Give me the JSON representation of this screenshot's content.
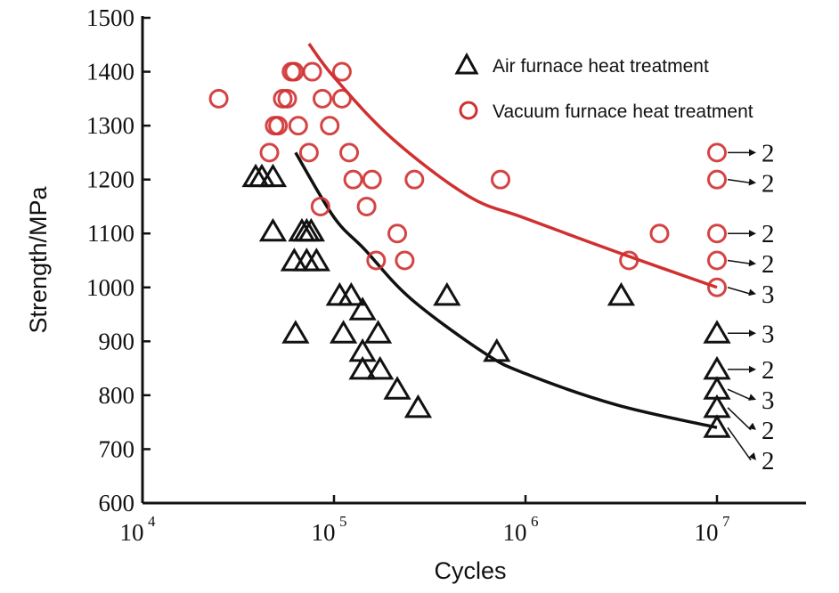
{
  "chart_data": {
    "type": "scatter",
    "xlabel": "Cycles",
    "ylabel": "Strength/MPa",
    "xscale": "log",
    "xlim": [
      10000,
      30000000
    ],
    "ylim": [
      600,
      1500
    ],
    "xticks": [
      10000,
      100000,
      1000000,
      10000000
    ],
    "xtick_labels": [
      {
        "base": "10",
        "exp": "4"
      },
      {
        "base": "10",
        "exp": "5"
      },
      {
        "base": "10",
        "exp": "6"
      },
      {
        "base": "10",
        "exp": "7"
      }
    ],
    "yticks": [
      600,
      700,
      800,
      900,
      1000,
      1100,
      1200,
      1300,
      1400,
      1500
    ],
    "grid": false,
    "legend_position": "top-right",
    "colors": {
      "air": "#111111",
      "vacuum": "#d03030"
    },
    "series": [
      {
        "name": "Air furnace heat treatment",
        "marker": "triangle",
        "points": [
          [
            39000,
            1205
          ],
          [
            42000,
            1205
          ],
          [
            48000,
            1205
          ],
          [
            48000,
            1104
          ],
          [
            68000,
            1104
          ],
          [
            72000,
            1104
          ],
          [
            76000,
            1104
          ],
          [
            62000,
            1049
          ],
          [
            72000,
            1049
          ],
          [
            81000,
            1049
          ],
          [
            107000,
            985
          ],
          [
            123000,
            985
          ],
          [
            63000,
            915
          ],
          [
            112000,
            915
          ],
          [
            170000,
            915
          ],
          [
            141000,
            958
          ],
          [
            141000,
            881
          ],
          [
            141000,
            848
          ],
          [
            174000,
            848
          ],
          [
            214000,
            811
          ],
          [
            275000,
            777
          ],
          [
            389000,
            985
          ],
          [
            708000,
            881
          ],
          [
            3160000,
            985
          ],
          [
            10000000,
            915
          ],
          [
            10000000,
            848
          ],
          [
            10000000,
            811
          ],
          [
            10000000,
            777
          ],
          [
            10000000,
            740
          ]
        ],
        "fit_curve": [
          [
            63000,
            1250
          ],
          [
            100000,
            1130
          ],
          [
            145000,
            1070
          ],
          [
            250000,
            980
          ],
          [
            600000,
            880
          ],
          [
            1000000,
            840
          ],
          [
            3000000,
            782
          ],
          [
            10000000,
            740
          ]
        ]
      },
      {
        "name": "Vacuum furnace heat treatment",
        "marker": "circle",
        "points": [
          [
            25000,
            1350
          ],
          [
            46000,
            1250
          ],
          [
            49000,
            1300
          ],
          [
            51000,
            1300
          ],
          [
            54000,
            1350
          ],
          [
            57000,
            1350
          ],
          [
            60000,
            1400
          ],
          [
            62000,
            1400
          ],
          [
            65000,
            1300
          ],
          [
            74000,
            1250
          ],
          [
            77000,
            1400
          ],
          [
            87000,
            1350
          ],
          [
            95000,
            1300
          ],
          [
            85000,
            1150
          ],
          [
            110000,
            1400
          ],
          [
            110000,
            1350
          ],
          [
            120000,
            1250
          ],
          [
            126000,
            1200
          ],
          [
            148000,
            1150
          ],
          [
            158000,
            1200
          ],
          [
            214000,
            1100
          ],
          [
            166000,
            1050
          ],
          [
            234000,
            1050
          ],
          [
            263000,
            1200
          ],
          [
            741000,
            1200
          ],
          [
            3470000,
            1050
          ],
          [
            5010000,
            1100
          ],
          [
            10000000,
            1250
          ],
          [
            10000000,
            1200
          ],
          [
            10000000,
            1100
          ],
          [
            10000000,
            1050
          ],
          [
            10000000,
            1000
          ]
        ],
        "fit_curve": [
          [
            74000,
            1452
          ],
          [
            100000,
            1390
          ],
          [
            200000,
            1277
          ],
          [
            500000,
            1170
          ],
          [
            1000000,
            1128
          ],
          [
            3200000,
            1062
          ],
          [
            10000000,
            1000
          ]
        ]
      }
    ],
    "annotations": [
      {
        "y": 1250,
        "text": "2"
      },
      {
        "y": 1200,
        "text": "2"
      },
      {
        "y": 1100,
        "text": "2"
      },
      {
        "y": 1050,
        "text": "2"
      },
      {
        "y": 1000,
        "text": "3"
      },
      {
        "y": 915,
        "text": "3"
      },
      {
        "y": 848,
        "text": "2"
      },
      {
        "y": 811,
        "text": "3"
      },
      {
        "y": 777,
        "text": "2"
      },
      {
        "y": 740,
        "text": "2"
      }
    ]
  }
}
